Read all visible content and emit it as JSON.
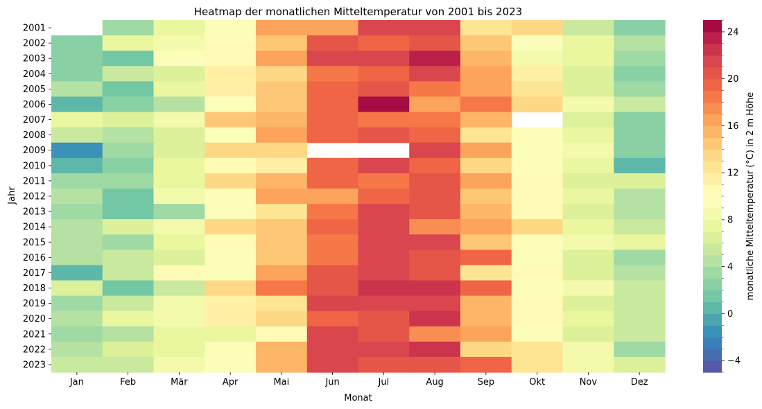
{
  "chart_data": {
    "type": "heatmap",
    "title": "Heatmap der monatlichen Mitteltemperatur von 2001 bis 2023",
    "xlabel": "Monat",
    "ylabel": "Jahr",
    "colorbar_label": "monatliche Mitteltemperatur (°C) in 2 m Höhe",
    "colormap": "Spectral_r",
    "vmin": -5,
    "vmax": 25,
    "colorbar_ticks": [
      -4,
      0,
      4,
      8,
      12,
      16,
      20,
      24
    ],
    "x_categories": [
      "Jan",
      "Feb",
      "Mär",
      "Apr",
      "Mai",
      "Jun",
      "Jul",
      "Aug",
      "Sep",
      "Okt",
      "Nov",
      "Dez"
    ],
    "y_categories": [
      "2001",
      "2002",
      "2003",
      "2004",
      "2005",
      "2006",
      "2007",
      "2008",
      "2009",
      "2010",
      "2011",
      "2012",
      "2013",
      "2014",
      "2015",
      "2016",
      "2017",
      "2018",
      "2019",
      "2020",
      "2021",
      "2022",
      "2023"
    ],
    "values": [
      [
        null,
        3.5,
        7.5,
        9.5,
        16.5,
        16.5,
        21.0,
        21.0,
        12.5,
        13.5,
        5.0,
        2.5
      ],
      [
        2.0,
        7.5,
        8.0,
        10.5,
        14.0,
        20.5,
        19.0,
        20.0,
        14.0,
        9.5,
        7.5,
        4.5
      ],
      [
        2.5,
        1.5,
        9.0,
        10.5,
        16.0,
        21.5,
        21.0,
        23.5,
        15.5,
        8.5,
        7.0,
        3.5
      ],
      [
        2.5,
        5.0,
        6.5,
        11.0,
        13.5,
        18.0,
        19.0,
        21.0,
        16.0,
        11.0,
        6.5,
        2.5
      ],
      [
        4.0,
        1.5,
        7.5,
        11.0,
        14.0,
        19.5,
        20.5,
        18.5,
        16.0,
        12.0,
        6.5,
        3.5
      ],
      [
        0.5,
        2.5,
        4.5,
        9.5,
        14.0,
        19.0,
        25.5,
        16.5,
        18.5,
        13.5,
        8.0,
        5.0
      ],
      [
        7.5,
        6.5,
        8.0,
        14.0,
        15.5,
        19.0,
        18.5,
        18.5,
        15.0,
        null,
        6.5,
        2.5
      ],
      [
        5.0,
        4.0,
        6.5,
        9.0,
        16.5,
        19.0,
        20.0,
        19.0,
        12.5,
        9.5,
        7.0,
        2.5
      ],
      [
        -1.5,
        3.5,
        6.5,
        13.0,
        13.0,
        null,
        null,
        21.0,
        16.5,
        9.5,
        8.0,
        2.5
      ],
      [
        0.0,
        2.5,
        7.0,
        10.0,
        11.5,
        19.0,
        21.5,
        19.0,
        13.0,
        9.5,
        7.0,
        0.0
      ],
      [
        3.5,
        3.5,
        7.0,
        13.0,
        15.5,
        19.0,
        18.0,
        20.0,
        16.0,
        10.0,
        6.0,
        6.0
      ],
      [
        4.0,
        1.0,
        8.5,
        9.5,
        16.0,
        16.5,
        19.5,
        20.5,
        14.0,
        10.0,
        7.0,
        4.5
      ],
      [
        3.0,
        1.5,
        3.0,
        9.5,
        12.0,
        18.0,
        21.0,
        20.0,
        15.0,
        10.5,
        6.0,
        4.5
      ],
      [
        4.5,
        6.5,
        8.5,
        13.0,
        14.0,
        19.0,
        21.0,
        17.5,
        16.0,
        13.5,
        7.0,
        5.0
      ],
      [
        4.5,
        3.5,
        7.0,
        10.0,
        14.0,
        18.0,
        21.5,
        21.5,
        14.0,
        9.5,
        8.0,
        7.5
      ],
      [
        4.5,
        5.0,
        6.5,
        9.5,
        14.0,
        18.0,
        21.0,
        20.0,
        19.0,
        9.5,
        6.0,
        3.5
      ],
      [
        0.0,
        5.0,
        10.0,
        9.5,
        16.0,
        20.0,
        21.0,
        20.0,
        12.5,
        10.5,
        6.0,
        4.5
      ],
      [
        6.5,
        1.0,
        5.0,
        13.5,
        18.5,
        20.0,
        22.0,
        22.0,
        19.0,
        9.0,
        8.0,
        5.0
      ],
      [
        3.5,
        5.0,
        8.5,
        11.0,
        12.0,
        21.5,
        21.5,
        21.0,
        15.5,
        10.5,
        6.5,
        5.0
      ],
      [
        4.5,
        7.5,
        8.0,
        11.5,
        13.0,
        19.5,
        20.5,
        22.5,
        15.5,
        10.5,
        7.5,
        5.0
      ],
      [
        3.5,
        4.5,
        7.0,
        7.5,
        10.5,
        21.0,
        20.0,
        17.5,
        16.0,
        9.5,
        6.5,
        5.0
      ],
      [
        4.0,
        6.5,
        7.0,
        9.5,
        15.5,
        21.0,
        21.5,
        22.5,
        13.5,
        12.0,
        8.0,
        3.5
      ],
      [
        5.0,
        5.0,
        8.0,
        9.5,
        15.5,
        21.5,
        20.5,
        20.0,
        19.0,
        12.0,
        8.0,
        6.5
      ]
    ]
  }
}
